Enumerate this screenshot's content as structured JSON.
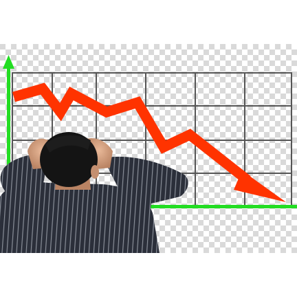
{
  "image": {
    "description_free": true,
    "background_pattern": "transparency-checkerboard",
    "checker_colors": [
      "#ffffff",
      "#d9d9d9"
    ]
  },
  "chart": {
    "axis_color": "#22dd22",
    "grid_color": "#555555",
    "trend_arrow_color": "#ff3300",
    "trend_direction": "down",
    "grid_rows": 4,
    "grid_cols": 6
  },
  "person": {
    "shirt_color": "#2b2f3a",
    "shirt_stripe_color": "#8a8f99",
    "hair_color": "#141414",
    "skin_color": "#d9a98a",
    "pose": "hands-on-head"
  }
}
